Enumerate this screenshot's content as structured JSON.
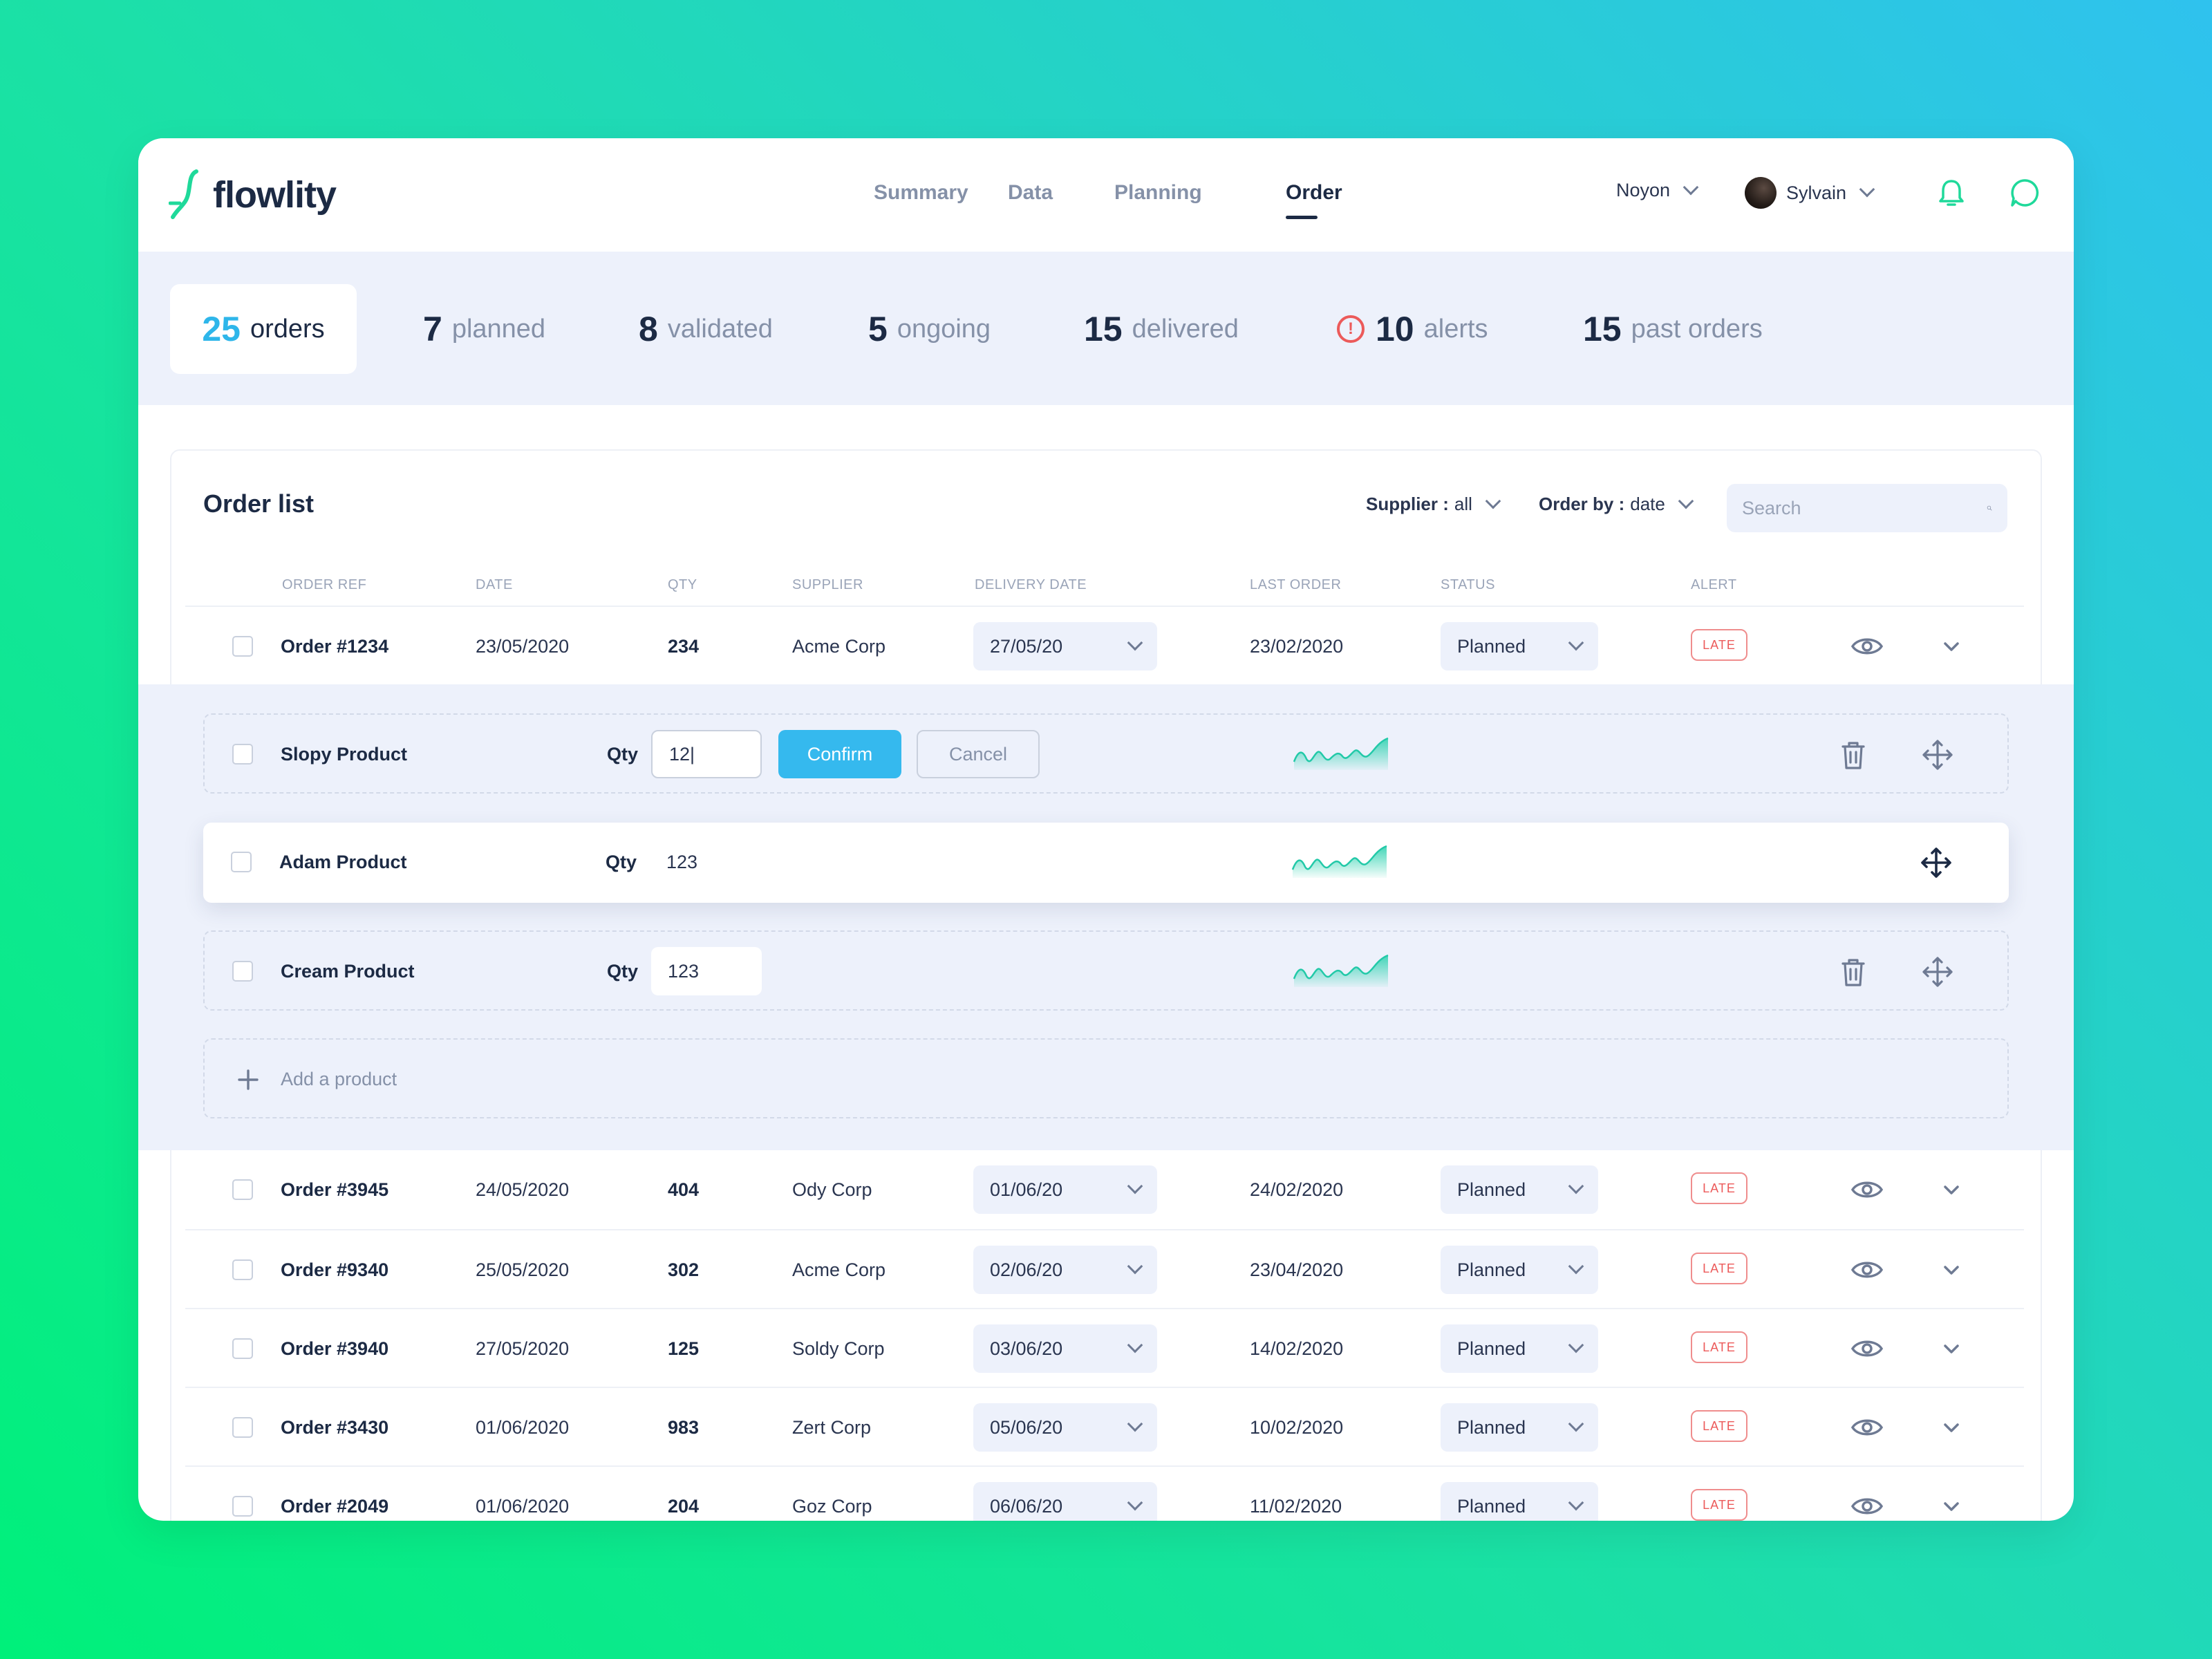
{
  "app": {
    "name": "flowlity"
  },
  "nav": {
    "links": [
      "Summary",
      "Data",
      "Planning",
      "Order"
    ],
    "active": "Order"
  },
  "header": {
    "site": "Noyon",
    "user": "Sylvain"
  },
  "stats": [
    {
      "value": "25",
      "label": "orders"
    },
    {
      "value": "7",
      "label": "planned"
    },
    {
      "value": "8",
      "label": "validated"
    },
    {
      "value": "5",
      "label": "ongoing"
    },
    {
      "value": "15",
      "label": "delivered"
    },
    {
      "value": "10",
      "label": "alerts"
    },
    {
      "value": "15",
      "label": "past orders"
    }
  ],
  "order_list": {
    "title": "Order list",
    "supplier_filter": {
      "label": "Supplier :",
      "value": "all"
    },
    "order_by": {
      "label": "Order by :",
      "value": "date"
    },
    "search_placeholder": "Search",
    "columns": [
      "ORDER REF",
      "DATE",
      "QTY",
      "SUPPLIER",
      "DELIVERY DATE",
      "LAST ORDER",
      "STATUS",
      "ALERT"
    ],
    "rows": [
      {
        "ref": "Order #1234",
        "date": "23/05/2020",
        "qty": "234",
        "supplier": "Acme Corp",
        "delivery": "27/05/20",
        "last_order": "23/02/2020",
        "status": "Planned",
        "alert": "LATE"
      },
      {
        "ref": "Order #3945",
        "date": "24/05/2020",
        "qty": "404",
        "supplier": "Ody Corp",
        "delivery": "01/06/20",
        "last_order": "24/02/2020",
        "status": "Planned",
        "alert": "LATE"
      },
      {
        "ref": "Order #9340",
        "date": "25/05/2020",
        "qty": "302",
        "supplier": "Acme Corp",
        "delivery": "02/06/20",
        "last_order": "23/04/2020",
        "status": "Planned",
        "alert": "LATE"
      },
      {
        "ref": "Order #3940",
        "date": "27/05/2020",
        "qty": "125",
        "supplier": "Soldy Corp",
        "delivery": "03/06/20",
        "last_order": "14/02/2020",
        "status": "Planned",
        "alert": "LATE"
      },
      {
        "ref": "Order #3430",
        "date": "01/06/2020",
        "qty": "983",
        "supplier": "Zert Corp",
        "delivery": "05/06/20",
        "last_order": "10/02/2020",
        "status": "Planned",
        "alert": "LATE"
      },
      {
        "ref": "Order #2049",
        "date": "01/06/2020",
        "qty": "204",
        "supplier": "Goz Corp",
        "delivery": "06/06/20",
        "last_order": "11/02/2020",
        "status": "Planned",
        "alert": "LATE"
      }
    ],
    "expanded": {
      "qty_label": "Qty",
      "products": [
        {
          "name": "Slopy Product",
          "qty": "12|"
        },
        {
          "name": "Adam Product",
          "qty": "123"
        },
        {
          "name": "Cream Product",
          "qty": "123"
        }
      ],
      "confirm_label": "Confirm",
      "cancel_label": "Cancel",
      "add_label": "Add a product"
    }
  },
  "colors": {
    "accent": "#35b9ee",
    "dark": "#1c2a44",
    "muted": "#8591a8",
    "alert": "#ec5a5a",
    "panel": "#edf1fb",
    "spark_line": "#2fd2b0"
  },
  "icons": [
    "logo-icon",
    "chevron-down-icon",
    "bell-icon",
    "chat-icon",
    "alert-circle-icon",
    "search-icon",
    "eye-icon",
    "trash-icon",
    "move-icon",
    "plus-icon"
  ]
}
